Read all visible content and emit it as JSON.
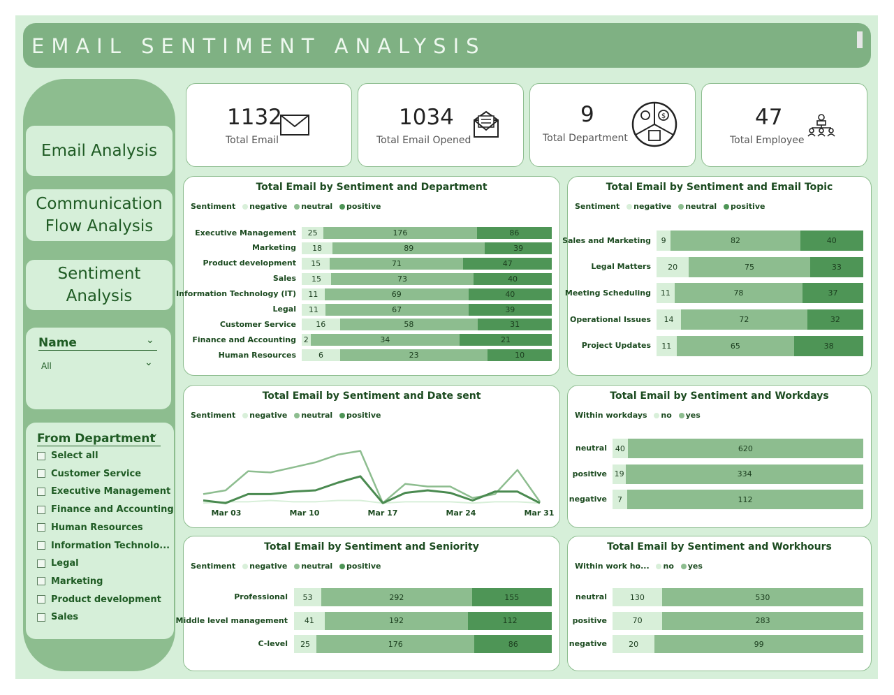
{
  "header": {
    "title": "EMAIL SENTIMENT ANALYSIS"
  },
  "nav": [
    {
      "label": "Email Analysis"
    },
    {
      "label": "Communication Flow Analysis"
    },
    {
      "label": "Sentiment Analysis"
    }
  ],
  "name_filter": {
    "label": "Name",
    "value": "All"
  },
  "dept_filter": {
    "label": "From Department",
    "options": [
      "Select all",
      "Customer Service",
      "Executive Management",
      "Finance and Accounting",
      "Human Resources",
      "Information Technolo...",
      "Legal",
      "Marketing",
      "Product development",
      "Sales"
    ]
  },
  "kpis": [
    {
      "value": "1132",
      "label": "Total Email",
      "icon": "envelope-icon"
    },
    {
      "value": "1034",
      "label": "Total Email Opened",
      "icon": "open-envelope-icon"
    },
    {
      "value": "9",
      "label": "Total Department",
      "icon": "department-icon"
    },
    {
      "value": "47",
      "label": "Total Employee",
      "icon": "employees-icon"
    }
  ],
  "colors": {
    "negative": "#d8efd9",
    "neutral": "#8dbd8f",
    "positive": "#4e9556",
    "accent": "#1f5b24"
  },
  "panels": {
    "dept": {
      "title": "Total Email by Sentiment and Department",
      "legend_title": "Sentiment",
      "legend": [
        "negative",
        "neutral",
        "positive"
      ]
    },
    "topic": {
      "title": "Total Email by Sentiment and Email Topic",
      "legend_title": "Sentiment",
      "legend": [
        "negative",
        "neutral",
        "positive"
      ]
    },
    "date": {
      "title": "Total Email by Sentiment and Date sent",
      "legend_title": "Sentiment",
      "legend": [
        "negative",
        "neutral",
        "positive"
      ],
      "x_ticks": [
        "Mar 03",
        "Mar 10",
        "Mar 17",
        "Mar 24",
        "Mar 31"
      ]
    },
    "workdays": {
      "title": "Total Email by Sentiment and Workdays",
      "legend_title": "Within workdays",
      "legend": [
        "no",
        "yes"
      ]
    },
    "seniority": {
      "title": "Total Email by Sentiment and Seniority",
      "legend_title": "Sentiment",
      "legend": [
        "negative",
        "neutral",
        "positive"
      ]
    },
    "workhours": {
      "title": "Total Email by Sentiment and Workhours",
      "legend_title": "Within work ho...",
      "legend": [
        "no",
        "yes"
      ]
    }
  },
  "chart_data": [
    {
      "type": "bar",
      "stacked": true,
      "orientation": "horizontal",
      "title": "Total Email by Sentiment and Department",
      "categories": [
        "Executive Management",
        "Marketing",
        "Product development",
        "Sales",
        "Information Technology (IT)",
        "Legal",
        "Customer Service",
        "Finance and Accounting",
        "Human Resources"
      ],
      "series": [
        {
          "name": "negative",
          "values": [
            25,
            18,
            15,
            15,
            11,
            11,
            16,
            2,
            6
          ]
        },
        {
          "name": "neutral",
          "values": [
            176,
            89,
            71,
            73,
            69,
            67,
            58,
            34,
            23
          ]
        },
        {
          "name": "positive",
          "values": [
            86,
            39,
            47,
            40,
            40,
            39,
            31,
            21,
            10
          ]
        }
      ]
    },
    {
      "type": "bar",
      "stacked": true,
      "orientation": "horizontal",
      "title": "Total Email by Sentiment and Email Topic",
      "categories": [
        "Sales and Marketing",
        "Legal Matters",
        "Meeting Scheduling",
        "Operational Issues",
        "Project Updates"
      ],
      "series": [
        {
          "name": "negative",
          "values": [
            9,
            20,
            11,
            14,
            11
          ]
        },
        {
          "name": "neutral",
          "values": [
            82,
            75,
            78,
            72,
            65
          ]
        },
        {
          "name": "positive",
          "values": [
            40,
            33,
            37,
            32,
            38
          ]
        }
      ]
    },
    {
      "type": "line",
      "title": "Total Email by Sentiment and Date sent",
      "x": [
        "Mar 01",
        "Mar 03",
        "Mar 05",
        "Mar 07",
        "Mar 09",
        "Mar 11",
        "Mar 13",
        "Mar 15",
        "Mar 17",
        "Mar 19",
        "Mar 21",
        "Mar 23",
        "Mar 25",
        "Mar 27",
        "Mar 29",
        "Mar 31"
      ],
      "series": [
        {
          "name": "negative",
          "values": [
            1,
            2,
            2,
            3,
            2,
            2,
            3,
            3,
            1,
            2,
            2,
            2,
            1,
            2,
            2,
            1
          ]
        },
        {
          "name": "neutral",
          "values": [
            8,
            11,
            26,
            25,
            29,
            33,
            39,
            42,
            1,
            16,
            14,
            14,
            5,
            8,
            27,
            2
          ]
        },
        {
          "name": "positive",
          "values": [
            3,
            1,
            8,
            8,
            10,
            11,
            17,
            22,
            1,
            9,
            11,
            9,
            3,
            10,
            10,
            1
          ]
        }
      ]
    },
    {
      "type": "bar",
      "stacked": true,
      "orientation": "horizontal",
      "title": "Total Email by Sentiment and Workdays",
      "categories": [
        "neutral",
        "positive",
        "negative"
      ],
      "series": [
        {
          "name": "no",
          "values": [
            40,
            19,
            7
          ]
        },
        {
          "name": "yes",
          "values": [
            620,
            334,
            112
          ]
        }
      ]
    },
    {
      "type": "bar",
      "stacked": true,
      "orientation": "horizontal",
      "title": "Total Email by Sentiment and Seniority",
      "categories": [
        "Professional",
        "Middle level management",
        "C-level"
      ],
      "series": [
        {
          "name": "negative",
          "values": [
            53,
            41,
            25
          ]
        },
        {
          "name": "neutral",
          "values": [
            292,
            192,
            176
          ]
        },
        {
          "name": "positive",
          "values": [
            155,
            112,
            86
          ]
        }
      ]
    },
    {
      "type": "bar",
      "stacked": true,
      "orientation": "horizontal",
      "title": "Total Email by Sentiment and Workhours",
      "categories": [
        "neutral",
        "positive",
        "negative"
      ],
      "series": [
        {
          "name": "no",
          "values": [
            130,
            70,
            20
          ]
        },
        {
          "name": "yes",
          "values": [
            530,
            283,
            99
          ]
        }
      ]
    }
  ]
}
